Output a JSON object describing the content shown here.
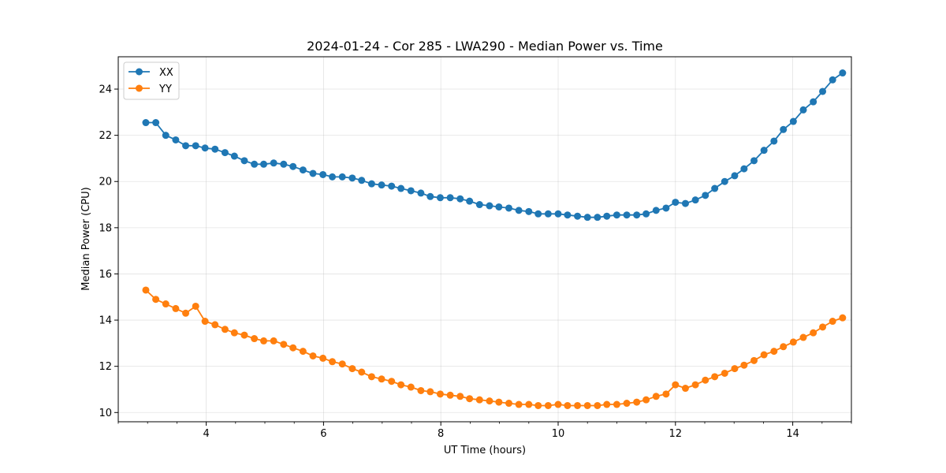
{
  "chart_data": {
    "type": "line",
    "title": "2024-01-24 - Cor 285 - LWA290 - Median Power vs. Time",
    "xlabel": "UT Time (hours)",
    "ylabel": "Median Power (CPU)",
    "xlim": [
      2.5,
      15.0
    ],
    "ylim": [
      9.6,
      25.4
    ],
    "xticks": [
      4,
      6,
      8,
      10,
      12,
      14
    ],
    "yticks": [
      10,
      12,
      14,
      16,
      18,
      20,
      22,
      24
    ],
    "xtick_labels": [
      "4",
      "6",
      "8",
      "10",
      "12",
      "14"
    ],
    "ytick_labels": [
      "10",
      "12",
      "14",
      "16",
      "18",
      "20",
      "22",
      "24"
    ],
    "grid": true,
    "legend": "top-left",
    "x": [
      2.97,
      3.14,
      3.31,
      3.48,
      3.65,
      3.82,
      3.98,
      4.15,
      4.32,
      4.48,
      4.65,
      4.82,
      4.98,
      5.15,
      5.32,
      5.48,
      5.65,
      5.82,
      5.99,
      6.15,
      6.32,
      6.49,
      6.65,
      6.82,
      6.99,
      7.16,
      7.32,
      7.49,
      7.66,
      7.82,
      7.99,
      8.16,
      8.33,
      8.49,
      8.66,
      8.83,
      8.99,
      9.16,
      9.33,
      9.5,
      9.66,
      9.83,
      10.0,
      10.16,
      10.33,
      10.5,
      10.67,
      10.83,
      11.0,
      11.17,
      11.34,
      11.5,
      11.67,
      11.84,
      12.0,
      12.17,
      12.34,
      12.51,
      12.67,
      12.84,
      13.01,
      13.17,
      13.34,
      13.51,
      13.68,
      13.84,
      14.01,
      14.18,
      14.35,
      14.51,
      14.68,
      14.85
    ],
    "series": [
      {
        "name": "XX",
        "color": "#1f77b4",
        "values": [
          22.55,
          22.55,
          22.0,
          21.8,
          21.55,
          21.55,
          21.45,
          21.4,
          21.25,
          21.1,
          20.9,
          20.75,
          20.75,
          20.8,
          20.75,
          20.65,
          20.5,
          20.35,
          20.3,
          20.2,
          20.2,
          20.15,
          20.05,
          19.9,
          19.85,
          19.8,
          19.7,
          19.6,
          19.5,
          19.35,
          19.3,
          19.3,
          19.25,
          19.15,
          19.0,
          18.95,
          18.9,
          18.85,
          18.75,
          18.7,
          18.6,
          18.6,
          18.6,
          18.55,
          18.5,
          18.45,
          18.45,
          18.5,
          18.55,
          18.55,
          18.55,
          18.6,
          18.75,
          18.85,
          19.1,
          19.05,
          19.2,
          19.4,
          19.7,
          20.0,
          20.25,
          20.55,
          20.9,
          21.35,
          21.75,
          22.25,
          22.6,
          23.1,
          23.45,
          23.9,
          24.4,
          24.7
        ]
      },
      {
        "name": "YY",
        "color": "#ff7f0e",
        "values": [
          15.3,
          14.9,
          14.7,
          14.5,
          14.3,
          14.6,
          13.95,
          13.8,
          13.6,
          13.45,
          13.35,
          13.2,
          13.1,
          13.1,
          12.95,
          12.8,
          12.65,
          12.45,
          12.35,
          12.2,
          12.1,
          11.9,
          11.75,
          11.55,
          11.45,
          11.35,
          11.2,
          11.1,
          10.95,
          10.9,
          10.8,
          10.75,
          10.7,
          10.6,
          10.55,
          10.5,
          10.45,
          10.4,
          10.35,
          10.35,
          10.3,
          10.3,
          10.35,
          10.3,
          10.3,
          10.3,
          10.3,
          10.35,
          10.35,
          10.4,
          10.45,
          10.55,
          10.7,
          10.8,
          11.2,
          11.05,
          11.2,
          11.4,
          11.55,
          11.7,
          11.9,
          12.05,
          12.25,
          12.5,
          12.65,
          12.85,
          13.05,
          13.25,
          13.45,
          13.7,
          13.95,
          14.1
        ]
      }
    ]
  }
}
